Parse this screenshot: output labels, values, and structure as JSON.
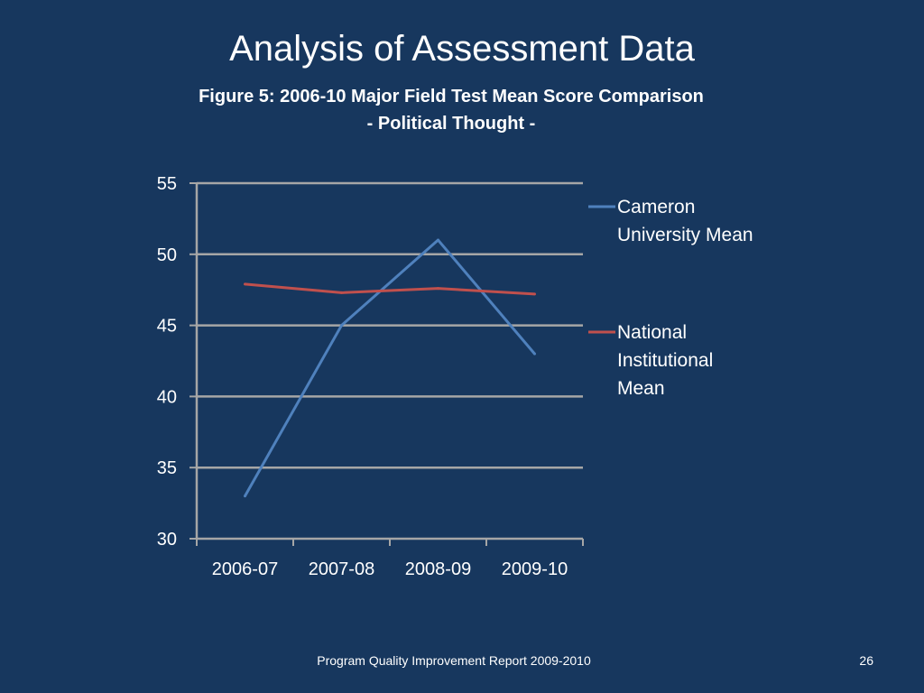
{
  "slide": {
    "title": "Analysis of Assessment Data",
    "figure_title_line1": "Figure 5: 2006-10 Major Field Test Mean Score Comparison",
    "figure_title_line2": "- Political Thought -",
    "footer": "Program Quality Improvement Report 2009-2010",
    "page_number": "26"
  },
  "colors": {
    "background": "#17375e",
    "grid": "#a6a6a6",
    "series_cameron": "#4f81bd",
    "series_national": "#c0504d"
  },
  "chart_data": {
    "type": "line",
    "categories": [
      "2006-07",
      "2007-08",
      "2008-09",
      "2009-10"
    ],
    "series": [
      {
        "name": "Cameron University Mean",
        "legend_lines": [
          "Cameron",
          "University Mean"
        ],
        "values": [
          33,
          45,
          51,
          43
        ]
      },
      {
        "name": "National Institutional Mean",
        "legend_lines": [
          "National",
          "Institutional",
          "Mean"
        ],
        "values": [
          47.9,
          47.3,
          47.6,
          47.2
        ]
      }
    ],
    "ylim": [
      30,
      55
    ],
    "yticks": [
      30,
      35,
      40,
      45,
      50,
      55
    ],
    "grid": true,
    "legend": "right",
    "xlabel": "",
    "ylabel": ""
  }
}
